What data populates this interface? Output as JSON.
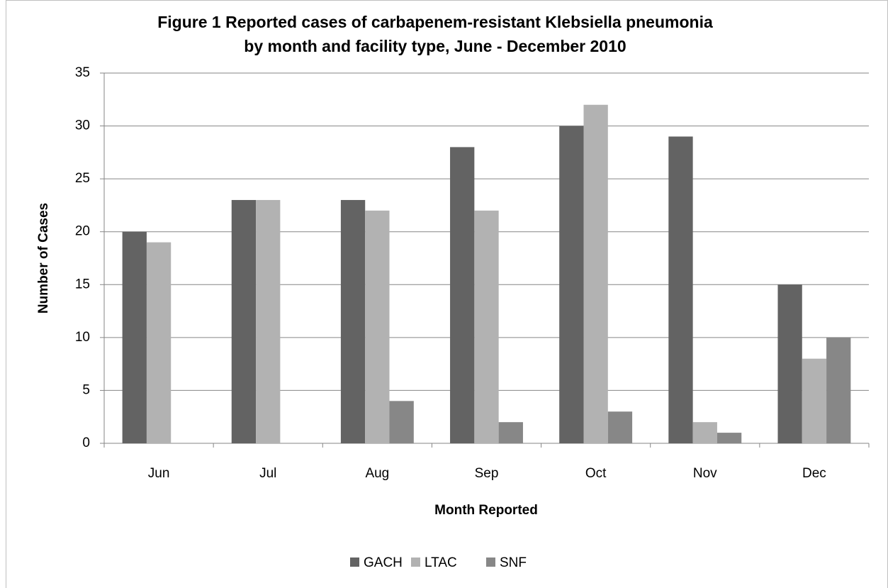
{
  "chart_data": {
    "type": "bar",
    "title": [
      "Figure 1 Reported cases of carbapenem-resistant Klebsiella pneumonia",
      "by month and facility type, June - December 2010"
    ],
    "x_label": "Month Reported",
    "y_label": "Number of Cases",
    "categories": [
      "Jun",
      "Jul",
      "Aug",
      "Sep",
      "Oct",
      "Nov",
      "Dec"
    ],
    "series": [
      {
        "name": "GACH",
        "color": "#636363",
        "values": [
          20,
          23,
          23,
          28,
          30,
          29,
          15
        ]
      },
      {
        "name": "LTAC",
        "color": "#b2b2b2",
        "values": [
          19,
          23,
          22,
          22,
          32,
          2,
          8
        ]
      },
      {
        "name": "SNF",
        "color": "#878787",
        "values": [
          0,
          0,
          4,
          2,
          3,
          1,
          10
        ]
      }
    ],
    "ylim": [
      0,
      35
    ],
    "yticks": [
      0,
      5,
      10,
      15,
      20,
      25,
      30,
      35
    ],
    "grid": true,
    "legend": "bottom"
  }
}
